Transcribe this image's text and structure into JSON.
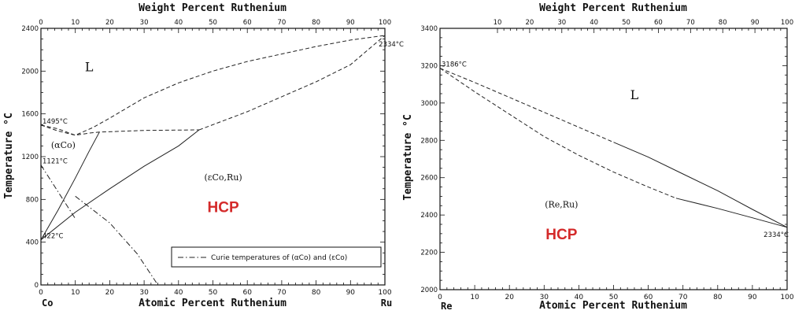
{
  "chart_data": [
    {
      "type": "phase-diagram",
      "title": "",
      "top_axis_label": "Weight Percent Ruthenium",
      "xlabel": "Atomic Percent Ruthenium",
      "ylabel": "Temperature °C",
      "left_element": "Co",
      "right_element": "Ru",
      "xlim": [
        0,
        100
      ],
      "ylim": [
        0,
        2400
      ],
      "x_ticks": [
        "0",
        "10",
        "20",
        "30",
        "40",
        "50",
        "60",
        "70",
        "80",
        "90",
        "100"
      ],
      "top_ticks": [
        "0",
        "10",
        "20",
        "30",
        "40",
        "50",
        "60",
        "70",
        "80",
        "90",
        "100"
      ],
      "y_ticks": [
        "0",
        "400",
        "800",
        "1200",
        "1600",
        "2000",
        "2400"
      ],
      "annotations": [
        {
          "text": "1495°C",
          "x": 0,
          "y": 1495
        },
        {
          "text": "1121°C",
          "x": 0,
          "y": 1121
        },
        {
          "text": "422°C",
          "x": 0,
          "y": 422
        },
        {
          "text": "2334°C",
          "x": 100,
          "y": 2334
        }
      ],
      "phase_labels": [
        {
          "text": "L",
          "x": 14,
          "y": 2000
        },
        {
          "text": "(αCo)",
          "x": 6.5,
          "y": 1280
        },
        {
          "text": "(εCo,Ru)",
          "x": 53,
          "y": 980
        },
        {
          "text": "HCP",
          "x": 53,
          "y": 680
        }
      ],
      "legend": "Curie temperatures of (αCo) and (εCo)",
      "series": [
        {
          "style": "dashed",
          "points": [
            [
              0,
              1495
            ],
            [
              5,
              1460
            ],
            [
              10,
              1400
            ],
            [
              15,
              1470
            ],
            [
              20,
              1560
            ],
            [
              30,
              1750
            ],
            [
              40,
              1890
            ],
            [
              50,
              2000
            ],
            [
              60,
              2090
            ],
            [
              70,
              2160
            ],
            [
              80,
              2230
            ],
            [
              90,
              2290
            ],
            [
              100,
              2334
            ]
          ]
        },
        {
          "style": "dashed",
          "points": [
            [
              0,
              1495
            ],
            [
              5,
              1440
            ],
            [
              10,
              1400
            ],
            [
              14,
              1420
            ],
            [
              17,
              1430
            ],
            [
              30,
              1445
            ],
            [
              46,
              1450
            ]
          ]
        },
        {
          "style": "dashed",
          "points": [
            [
              46,
              1450
            ],
            [
              60,
              1620
            ],
            [
              70,
              1760
            ],
            [
              80,
              1900
            ],
            [
              90,
              2060
            ],
            [
              100,
              2334
            ]
          ]
        },
        {
          "style": "solid",
          "points": [
            [
              0,
              422
            ],
            [
              5,
              700
            ],
            [
              10,
              1000
            ],
            [
              14,
              1250
            ],
            [
              17,
              1430
            ]
          ]
        },
        {
          "style": "solid",
          "points": [
            [
              0,
              422
            ],
            [
              10,
              680
            ],
            [
              20,
              900
            ],
            [
              30,
              1110
            ],
            [
              40,
              1300
            ],
            [
              46,
              1450
            ]
          ]
        },
        {
          "style": "dashdot",
          "points": [
            [
              0,
              1121
            ],
            [
              10,
              620
            ]
          ]
        },
        {
          "style": "dashdot",
          "points": [
            [
              10,
              830
            ],
            [
              20,
              580
            ],
            [
              28,
              290
            ],
            [
              34,
              0
            ]
          ]
        }
      ]
    },
    {
      "type": "phase-diagram",
      "title": "",
      "top_axis_label": "Weight Percent Ruthenium",
      "xlabel": "Atomic Percent Ruthenium",
      "ylabel": "Temperature °C",
      "left_element": "Re",
      "right_element": "",
      "xlim": [
        0,
        100
      ],
      "ylim": [
        2000,
        3400
      ],
      "x_ticks": [
        "0",
        "10",
        "20",
        "30",
        "40",
        "50",
        "60",
        "70",
        "80",
        "90",
        "100"
      ],
      "top_ticks": [
        "10",
        "20",
        "30",
        "40",
        "50",
        "60",
        "70",
        "80",
        "90",
        "100"
      ],
      "y_ticks": [
        "2000",
        "2200",
        "2400",
        "2600",
        "2800",
        "3000",
        "3200",
        "3400"
      ],
      "annotations": [
        {
          "text": "3186°C",
          "x": 0,
          "y": 3186
        },
        {
          "text": "2334°C",
          "x": 100,
          "y": 2334
        }
      ],
      "phase_labels": [
        {
          "text": "L",
          "x": 56,
          "y": 3020
        },
        {
          "text": "(Re,Ru)",
          "x": 35,
          "y": 2440
        },
        {
          "text": "HCP",
          "x": 35,
          "y": 2270
        }
      ],
      "series": [
        {
          "style": "dashed",
          "points": [
            [
              0,
              3186
            ],
            [
              10,
              3110
            ],
            [
              20,
              3030
            ],
            [
              30,
              2950
            ],
            [
              40,
              2870
            ],
            [
              50,
              2790
            ]
          ]
        },
        {
          "style": "solid",
          "points": [
            [
              50,
              2790
            ],
            [
              60,
              2710
            ],
            [
              70,
              2620
            ],
            [
              80,
              2530
            ],
            [
              90,
              2430
            ],
            [
              100,
              2334
            ]
          ]
        },
        {
          "style": "dashed",
          "points": [
            [
              0,
              3186
            ],
            [
              10,
              3060
            ],
            [
              20,
              2940
            ],
            [
              30,
              2820
            ],
            [
              40,
              2720
            ],
            [
              50,
              2630
            ],
            [
              60,
              2550
            ],
            [
              68,
              2490
            ]
          ]
        },
        {
          "style": "solid",
          "points": [
            [
              68,
              2490
            ],
            [
              80,
              2435
            ],
            [
              90,
              2385
            ],
            [
              100,
              2334
            ]
          ]
        }
      ]
    }
  ]
}
